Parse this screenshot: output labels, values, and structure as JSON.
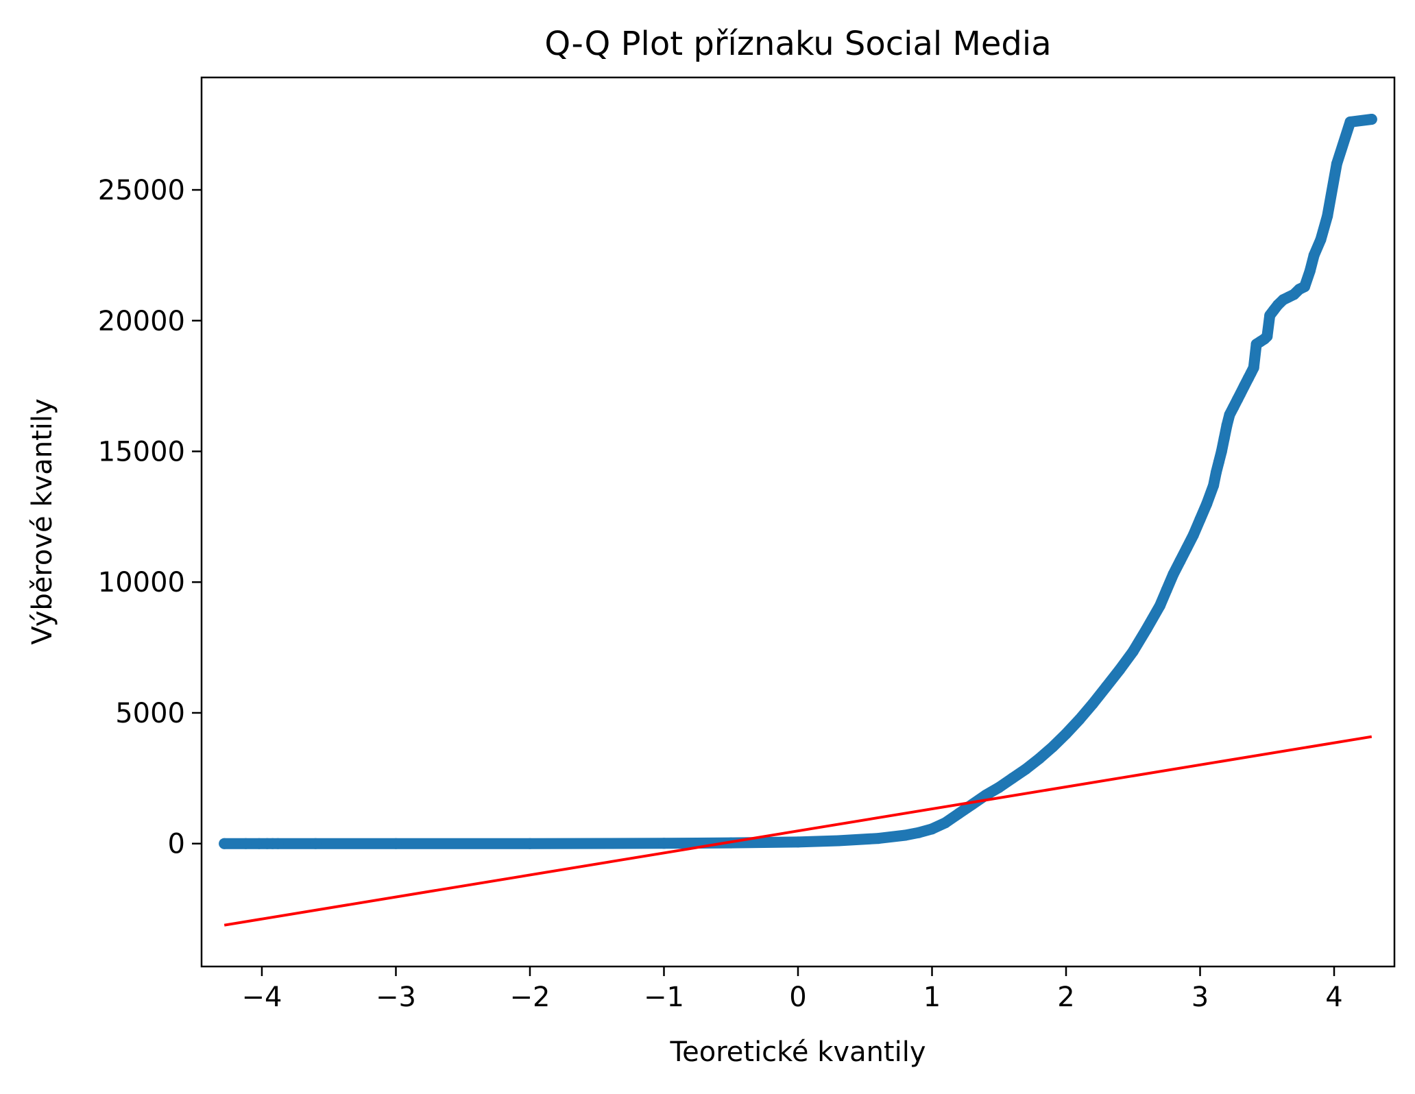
{
  "chart_data": {
    "type": "scatter",
    "title": "Q-Q Plot příznaku Social Media",
    "xlabel": "Teoretické kvantily",
    "ylabel": "Výběrové kvantily",
    "xlim": [
      -4.45,
      4.45
    ],
    "ylim": [
      -4700,
      29300
    ],
    "x_ticks": [
      -4,
      -3,
      -2,
      -1,
      0,
      1,
      2,
      3,
      4
    ],
    "x_tick_labels": [
      "−4",
      "−3",
      "−2",
      "−1",
      "0",
      "1",
      "2",
      "3",
      "4"
    ],
    "y_ticks": [
      0,
      5000,
      10000,
      15000,
      20000,
      25000
    ],
    "y_tick_labels": [
      "0",
      "5000",
      "10000",
      "15000",
      "20000",
      "25000"
    ],
    "grid": false,
    "series": [
      {
        "kind": "points",
        "color": "#1f77b4",
        "x": [
          -4.28,
          -4.12,
          -4.02,
          -3.96,
          -3.92,
          -3.88,
          -3.6,
          -3.0,
          -2.0,
          -1.0,
          -0.5,
          0.0,
          0.3,
          0.6,
          0.8,
          0.9,
          1.0,
          1.1,
          1.2,
          1.3,
          1.4,
          1.5,
          1.6,
          1.7,
          1.8,
          1.9,
          2.0,
          2.1,
          2.2,
          2.3,
          2.4,
          2.5,
          2.6,
          2.7,
          2.75,
          2.8,
          2.85,
          2.9,
          2.95,
          3.0,
          3.05,
          3.1,
          3.12,
          3.14,
          3.16,
          3.18,
          3.2,
          3.22,
          3.25,
          3.28,
          3.3,
          3.33,
          3.36,
          3.38,
          3.4,
          3.42,
          3.45,
          3.48,
          3.5,
          3.52,
          3.55,
          3.58,
          3.62,
          3.66,
          3.7,
          3.74,
          3.78,
          3.82,
          3.85,
          3.9,
          3.95,
          4.02,
          4.12,
          4.28
        ],
        "y": [
          0,
          0,
          0,
          0,
          0,
          0,
          0,
          0,
          0,
          10,
          30,
          60,
          110,
          200,
          320,
          420,
          560,
          800,
          1150,
          1500,
          1850,
          2150,
          2500,
          2850,
          3250,
          3700,
          4200,
          4750,
          5350,
          6000,
          6650,
          7350,
          8200,
          9100,
          9700,
          10300,
          10800,
          11300,
          11800,
          12400,
          13000,
          13700,
          14200,
          14600,
          15000,
          15500,
          16000,
          16400,
          16700,
          17000,
          17200,
          17500,
          17800,
          18000,
          18200,
          19100,
          19200,
          19300,
          19400,
          20200,
          20400,
          20600,
          20800,
          20900,
          21000,
          21200,
          21300,
          21900,
          22500,
          23100,
          24000,
          26000,
          27600,
          27700
        ]
      },
      {
        "kind": "line",
        "color": "#ff0000",
        "x": [
          -4.28,
          4.28
        ],
        "y": [
          -3120,
          4090
        ]
      }
    ]
  }
}
